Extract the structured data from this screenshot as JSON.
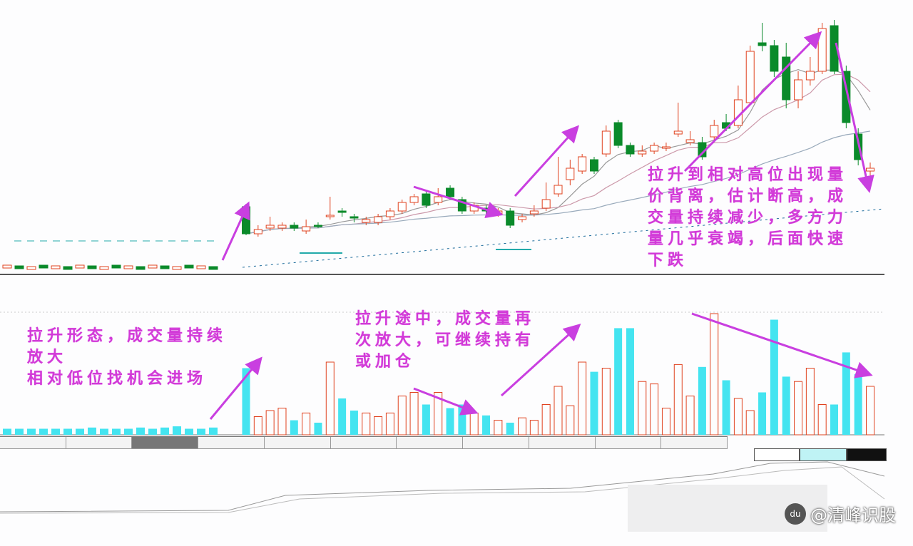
{
  "chart_data": {
    "type": "candlestick",
    "title": "",
    "candles": [
      [
        27.5,
        18,
        28.5,
        17.5
      ],
      [
        18,
        19.5,
        21,
        17
      ],
      [
        20,
        21,
        24,
        19
      ],
      [
        20,
        21,
        22,
        19
      ],
      [
        21,
        20,
        22,
        19
      ],
      [
        19,
        20.5,
        23,
        18
      ],
      [
        21,
        20.5,
        22,
        20
      ],
      [
        24,
        24.5,
        31,
        23
      ],
      [
        26,
        25.5,
        27,
        24
      ],
      [
        24,
        23.5,
        25,
        22
      ],
      [
        22,
        23,
        24,
        21
      ],
      [
        22,
        24,
        25,
        21
      ],
      [
        24,
        26,
        27,
        23
      ],
      [
        26,
        29,
        30,
        25
      ],
      [
        29,
        31,
        32,
        28
      ],
      [
        32,
        28,
        33,
        27
      ],
      [
        29,
        31,
        34,
        28
      ],
      [
        34,
        31,
        35,
        30
      ],
      [
        30,
        26,
        31,
        25
      ],
      [
        26,
        28,
        29,
        25
      ],
      [
        27,
        26,
        28,
        25
      ],
      [
        25,
        26,
        27,
        24
      ],
      [
        26,
        21,
        27,
        20
      ],
      [
        23,
        24,
        25,
        22
      ],
      [
        25,
        26,
        28,
        24
      ],
      [
        27,
        30,
        36,
        26
      ],
      [
        32,
        35,
        45,
        31
      ],
      [
        37,
        41,
        44,
        35
      ],
      [
        40,
        45,
        46,
        39
      ],
      [
        44,
        40,
        45,
        39
      ],
      [
        46,
        54,
        56,
        45
      ],
      [
        57,
        49,
        58,
        48
      ],
      [
        49,
        46,
        50,
        45
      ],
      [
        46,
        47,
        49,
        45
      ],
      [
        47,
        49,
        50,
        46
      ],
      [
        48,
        48.5,
        50,
        47
      ],
      [
        53,
        54,
        64,
        52
      ],
      [
        50,
        51,
        54,
        49
      ],
      [
        50,
        45,
        52,
        44
      ],
      [
        52,
        56,
        58,
        51
      ],
      [
        57,
        55,
        60,
        54
      ],
      [
        56,
        65,
        70,
        55
      ],
      [
        64,
        82,
        84,
        63
      ],
      [
        85,
        84,
        92,
        82
      ],
      [
        84,
        75,
        86,
        73
      ],
      [
        80,
        65,
        85,
        62
      ],
      [
        65,
        72,
        75,
        62
      ],
      [
        72,
        75,
        80,
        70
      ],
      [
        75,
        90,
        92,
        74
      ],
      [
        91,
        75,
        93,
        74
      ],
      [
        75,
        57,
        77,
        55
      ],
      [
        53,
        44,
        55,
        42
      ],
      [
        40,
        41,
        43,
        38
      ]
    ],
    "volume": [
      55,
      15,
      20,
      22,
      12,
      18,
      10,
      60,
      30,
      20,
      18,
      15,
      18,
      32,
      35,
      25,
      35,
      22,
      25,
      18,
      16,
      12,
      10,
      14,
      12,
      25,
      40,
      24,
      60,
      52,
      55,
      88,
      88,
      44,
      42,
      22,
      58,
      32,
      56,
      100,
      45,
      30,
      20,
      35,
      95,
      48,
      44,
      55,
      25,
      25,
      68,
      50,
      40
    ],
    "pre_breakout_volume": [
      5,
      5,
      5,
      5,
      5,
      5,
      5,
      6,
      5,
      5,
      5,
      6,
      5,
      6,
      7,
      5,
      5,
      6
    ],
    "moving_averages": [
      5,
      10,
      30
    ],
    "colors": {
      "up": "#e0421f",
      "down": "#0a8a2a",
      "volume_down": "#44e4f0",
      "annotation": "#d23ad8"
    }
  },
  "annotations": {
    "note1": "拉升到相对高位出现量价背离，估计断高，成交量持续减少，多方力量几乎衰竭，后面快速下跌",
    "note2": "拉升形态，成交量持续放大\n相对低位找机会进场",
    "note3": "拉升途中，成交量再次放大，可继续持有或加仓"
  },
  "watermark": "@清峰识股",
  "watermark_icon": "du"
}
